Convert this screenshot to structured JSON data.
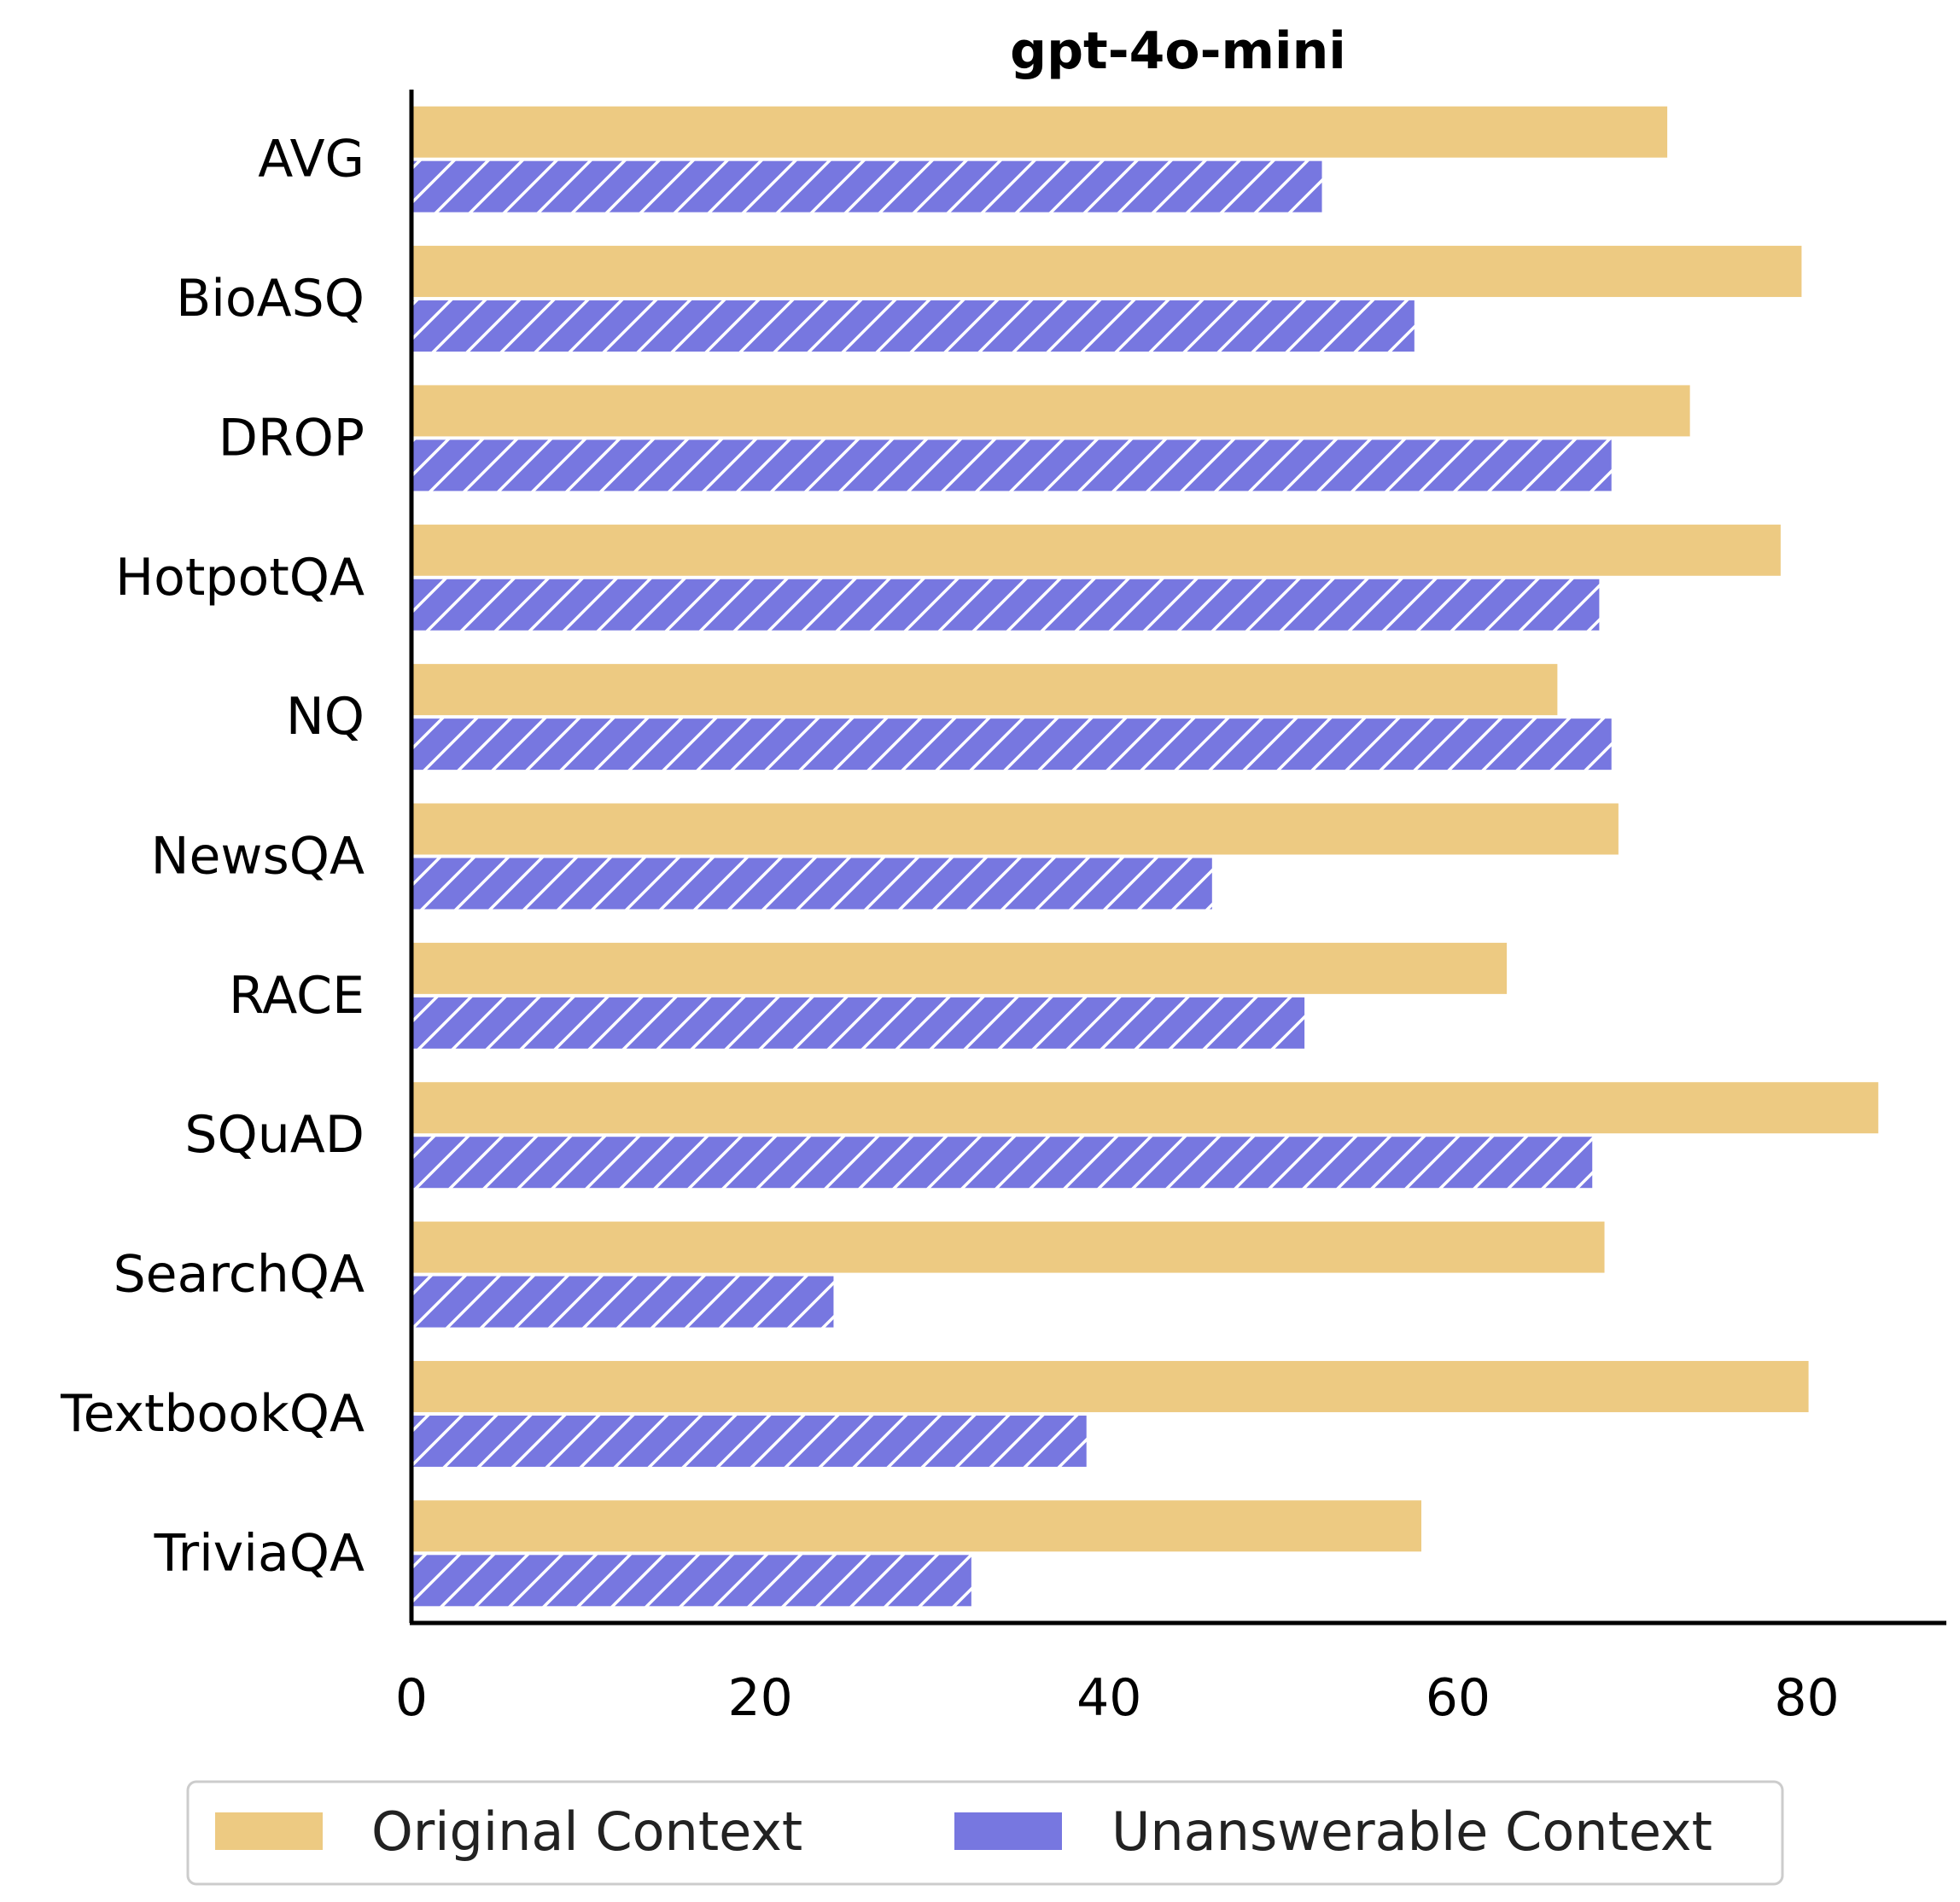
{
  "chart_data": {
    "type": "bar",
    "orientation": "horizontal",
    "title": "gpt-4o-mini",
    "xlabel": "",
    "ylabel": "",
    "categories": [
      "AVG",
      "BioASQ",
      "DROP",
      "HotpotQA",
      "NQ",
      "NewsQA",
      "RACE",
      "SQuAD",
      "SearchQA",
      "TextbookQA",
      "TriviaQA"
    ],
    "series": [
      {
        "name": "Original Context",
        "color": "#edca82",
        "pattern": "none",
        "values": [
          72.0,
          79.7,
          73.3,
          78.5,
          65.7,
          69.2,
          62.8,
          84.1,
          68.4,
          80.1,
          57.9
        ]
      },
      {
        "name": "Unanswerable Context",
        "color": "#7777e0",
        "pattern": "hatch",
        "values": [
          52.2,
          57.5,
          68.8,
          68.1,
          68.8,
          45.9,
          51.2,
          67.7,
          24.2,
          38.7,
          32.1
        ]
      }
    ],
    "xlim": [
      0,
      88
    ],
    "xticks": [
      "0",
      "20",
      "40",
      "60",
      "80"
    ],
    "grid": false,
    "legend_position": "bottom"
  }
}
